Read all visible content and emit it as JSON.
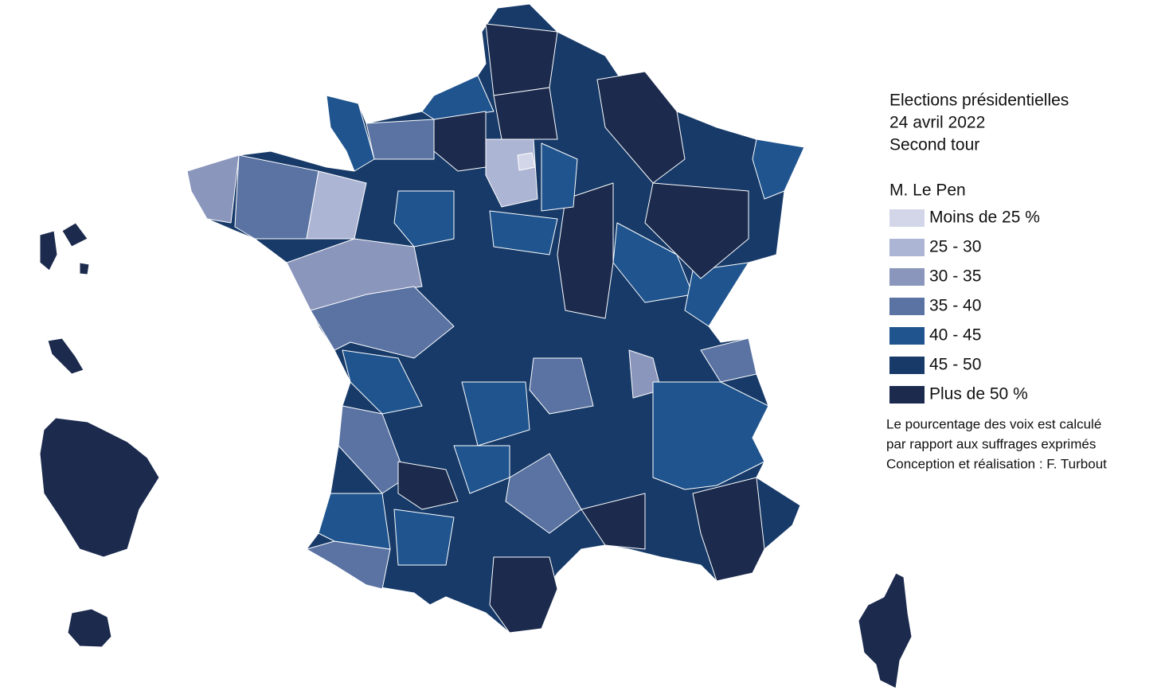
{
  "title": {
    "lines": [
      "Elections présidentielles",
      "24 avril 2022",
      "Second tour"
    ]
  },
  "legend": {
    "title": "M. Le Pen",
    "classes": [
      {
        "label": "Moins de 25 %",
        "color": "#d3d6e9"
      },
      {
        "label": "25 - 30",
        "color": "#adb5d4"
      },
      {
        "label": "30 - 35",
        "color": "#8b96bc"
      },
      {
        "label": "35 - 40",
        "color": "#5a73a3"
      },
      {
        "label": "40 - 45",
        "color": "#1f548e"
      },
      {
        "label": "45 - 50",
        "color": "#173a69"
      },
      {
        "label": "Plus de 50 %",
        "color": "#1b2a4d"
      }
    ]
  },
  "notes": [
    "Le pourcentage des voix est calculé",
    "par rapport aux suffrages exprimés",
    "Conception et réalisation : F. Turbout"
  ]
}
